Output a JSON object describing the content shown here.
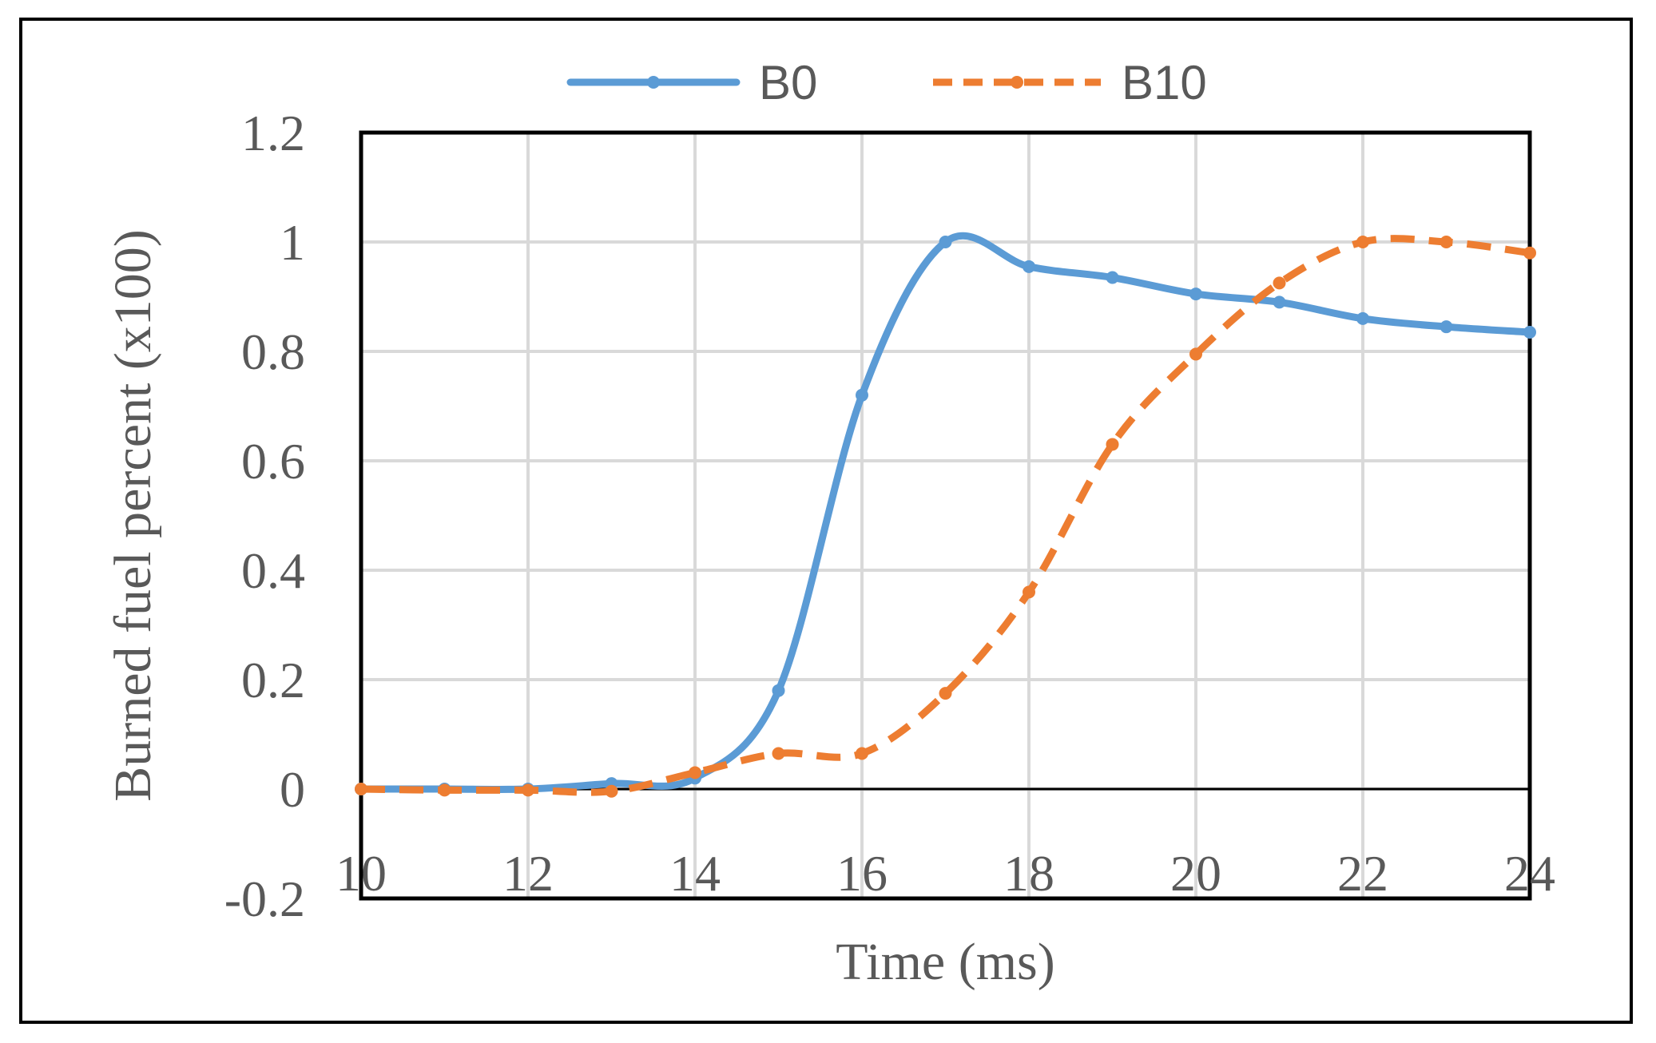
{
  "chart_data": {
    "type": "line",
    "xlabel": "Time (ms)",
    "ylabel": "Burned fuel percent (x100)",
    "xlim": [
      10,
      24
    ],
    "ylim": [
      -0.2,
      1.2
    ],
    "x_ticks": [
      "10",
      "12",
      "14",
      "16",
      "18",
      "20",
      "22",
      "24"
    ],
    "y_ticks": [
      "-0.2",
      "0",
      "0.2",
      "0.4",
      "0.6",
      "0.8",
      "1",
      "1.2"
    ],
    "grid": true,
    "legend_position": "top-center",
    "series": [
      {
        "name": "B0",
        "color": "#5b9bd5",
        "style": "solid",
        "x": [
          10,
          11,
          12,
          13,
          14,
          15,
          16,
          17,
          18,
          19,
          20,
          21,
          22,
          23,
          24
        ],
        "y": [
          0,
          0,
          0,
          0.01,
          0.02,
          0.18,
          0.72,
          1.0,
          0.955,
          0.935,
          0.905,
          0.89,
          0.86,
          0.845,
          0.835
        ]
      },
      {
        "name": "B10",
        "color": "#ed7d31",
        "style": "dashed",
        "x": [
          10,
          11,
          12,
          13,
          14,
          15,
          16,
          17,
          18,
          19,
          20,
          21,
          22,
          23,
          24
        ],
        "y": [
          0,
          -0.002,
          -0.002,
          -0.004,
          0.03,
          0.065,
          0.065,
          0.175,
          0.36,
          0.63,
          0.795,
          0.925,
          1.0,
          1.0,
          0.98
        ]
      }
    ]
  }
}
